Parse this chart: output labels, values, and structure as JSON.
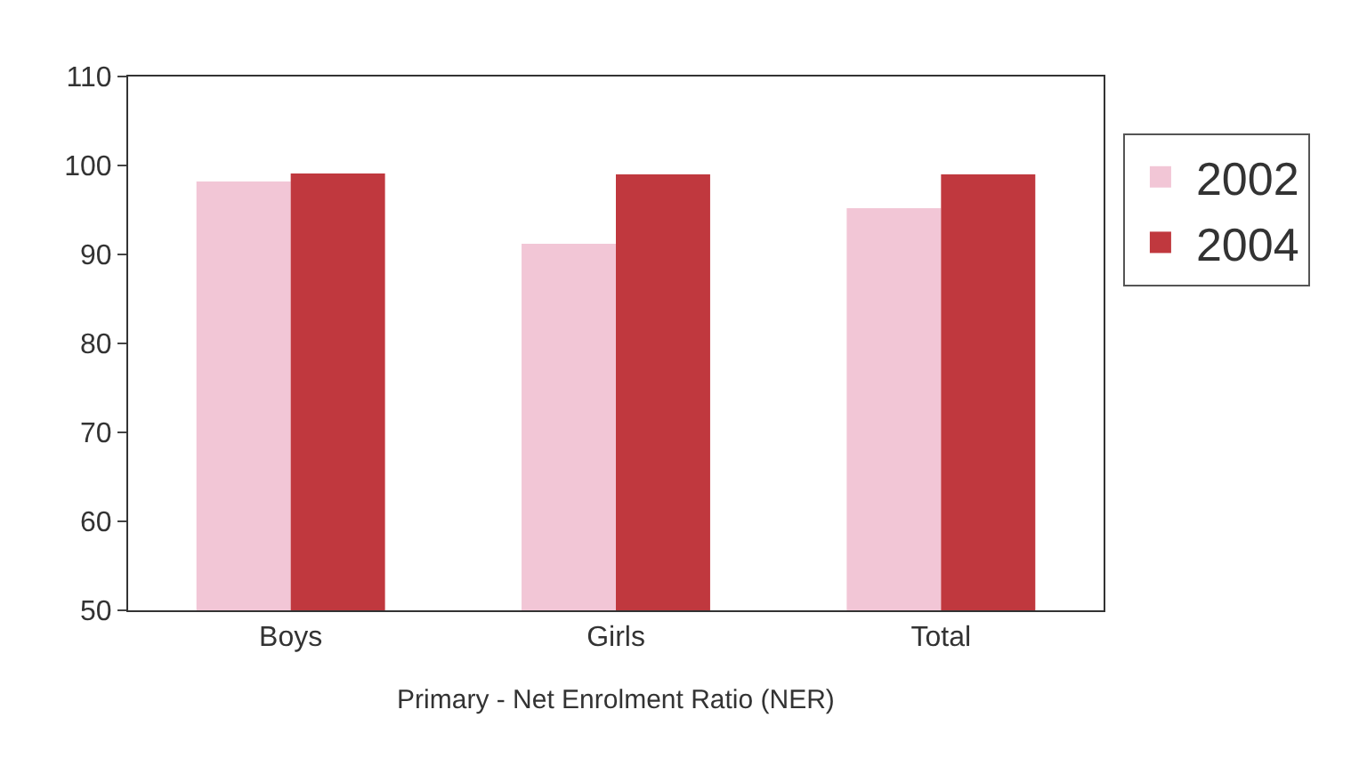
{
  "chart_data": {
    "type": "bar",
    "categories": [
      "Boys",
      "Girls",
      "Total"
    ],
    "series": [
      {
        "name": "2002",
        "color": "#f2c6d6",
        "values": [
          98.2,
          91.2,
          95.2
        ]
      },
      {
        "name": "2004",
        "color": "#c0383e",
        "values": [
          99.1,
          99.0,
          99.0
        ]
      }
    ],
    "xlabel": "Primary - Net Enrolment Ratio (NER)",
    "ylim": [
      50,
      110
    ],
    "yticks": [
      50,
      60,
      70,
      80,
      90,
      100,
      110
    ],
    "grid": false,
    "legend": "right"
  }
}
